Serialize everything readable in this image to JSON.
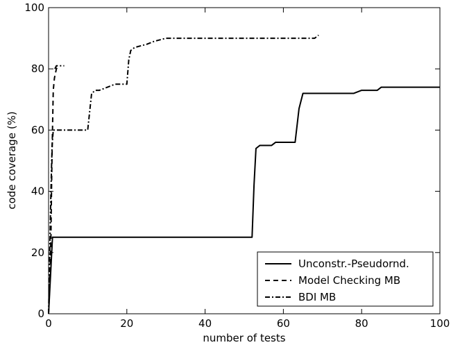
{
  "chart_data": {
    "type": "line",
    "title": "",
    "xlabel": "number of tests",
    "ylabel": "code coverage (%)",
    "xlim": [
      0,
      100
    ],
    "ylim": [
      0,
      100
    ],
    "xticks": [
      0,
      20,
      40,
      60,
      80,
      100
    ],
    "yticks": [
      0,
      20,
      40,
      60,
      80,
      100
    ],
    "grid": false,
    "legend_position": "bottom-right",
    "series": [
      {
        "name": "Unconstr.-Pseudornd.",
        "style": "solid",
        "color": "#000000",
        "x": [
          0,
          1,
          10,
          20,
          30,
          40,
          50,
          52,
          52.5,
          53,
          54,
          55,
          56,
          57,
          58,
          60,
          63,
          64,
          65,
          70,
          75,
          78,
          80,
          84,
          85,
          90,
          95,
          100
        ],
        "y": [
          0,
          25,
          25,
          25,
          25,
          25,
          25,
          25,
          42,
          54,
          55,
          55,
          55,
          55,
          56,
          56,
          56,
          67,
          72,
          72,
          72,
          72,
          73,
          73,
          74,
          74,
          74,
          74
        ]
      },
      {
        "name": "Model Checking MB",
        "style": "dashed",
        "color": "#000000",
        "x": [
          0,
          0.3,
          0.6,
          0.8,
          1,
          1.2,
          1.5,
          2,
          2.5
        ],
        "y": [
          0,
          10,
          25,
          45,
          60,
          73,
          77,
          80,
          81
        ]
      },
      {
        "name": "BDI MB",
        "style": "dashdot",
        "color": "#000000",
        "x": [
          0,
          0.3,
          0.6,
          0.9,
          1.2,
          2,
          5,
          8,
          10,
          10.5,
          11,
          12,
          13,
          15,
          17,
          19,
          20,
          20.5,
          21,
          22,
          25,
          27,
          30,
          35,
          40,
          50,
          60,
          65,
          68,
          69
        ],
        "y": [
          0,
          20,
          40,
          55,
          60,
          60,
          60,
          60,
          60,
          66,
          72,
          73,
          73,
          74,
          75,
          75,
          75,
          83,
          86,
          87,
          88,
          89,
          90,
          90,
          90,
          90,
          90,
          90,
          90,
          91
        ]
      },
      {
        "name": "",
        "style": "dashdot",
        "color": "#000000",
        "x": [
          1.6,
          2,
          2.5,
          3,
          3.5,
          4
        ],
        "y": [
          80,
          81,
          81,
          81,
          81,
          81
        ]
      }
    ]
  }
}
